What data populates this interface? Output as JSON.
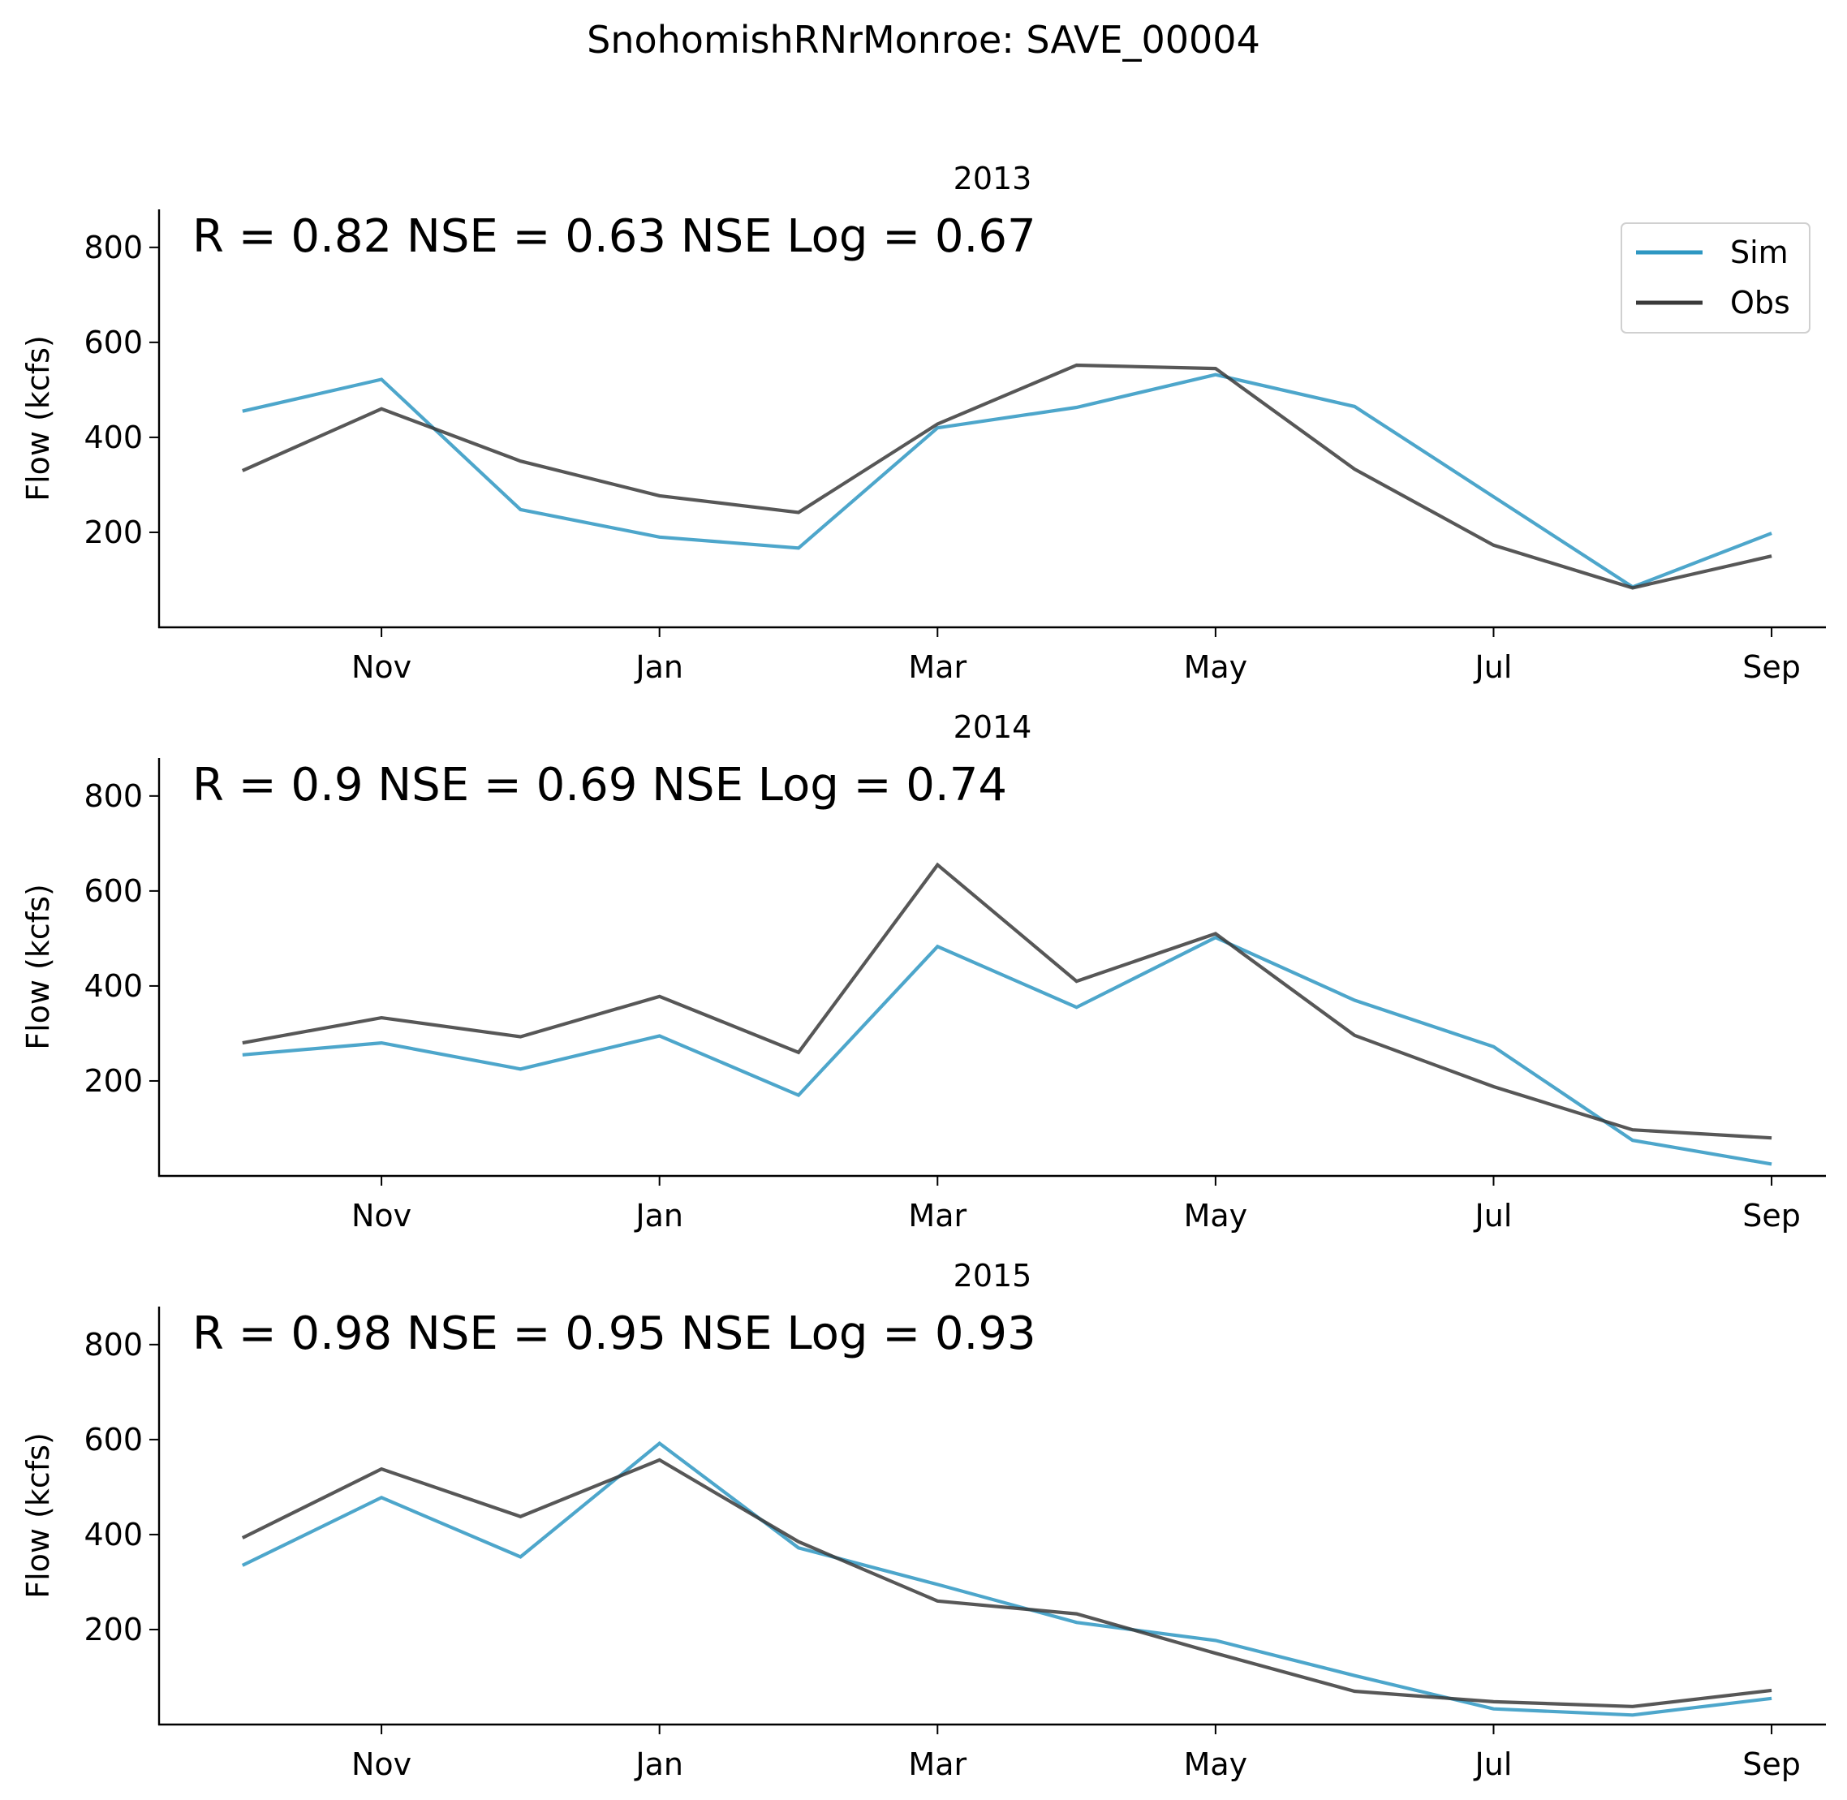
{
  "figure": {
    "suptitle": "SnohomishRNrMonroe: SAVE_00004"
  },
  "legend": {
    "placement": "upper-right of first panel",
    "items": [
      {
        "label": "Sim",
        "color": "#2e97c2"
      },
      {
        "label": "Obs",
        "color": "#3a3a3a"
      }
    ]
  },
  "chart_data": [
    {
      "type": "line",
      "title": "2013",
      "annotation": "R = 0.82  NSE = 0.63  NSE Log = 0.67",
      "ylabel": "Flow (kcfs)",
      "xlabel": "",
      "ylim": [
        0,
        880
      ],
      "yticks": [
        200,
        400,
        600,
        800
      ],
      "xticks": [
        "Nov",
        "Jan",
        "Mar",
        "May",
        "Jul",
        "Sep"
      ],
      "x": [
        "Oct",
        "Nov",
        "Dec",
        "Jan",
        "Feb",
        "Mar",
        "Apr",
        "May",
        "Jun",
        "Jul",
        "Aug",
        "Sep"
      ],
      "grid": false,
      "series": [
        {
          "name": "Sim",
          "color": "#2e97c2",
          "values": [
            455,
            522,
            248,
            190,
            167,
            420,
            463,
            532,
            465,
            275,
            85,
            198
          ]
        },
        {
          "name": "Obs",
          "color": "#3a3a3a",
          "values": [
            330,
            460,
            350,
            277,
            242,
            428,
            552,
            545,
            333,
            173,
            83,
            150
          ]
        }
      ]
    },
    {
      "type": "line",
      "title": "2014",
      "annotation": "R = 0.9  NSE = 0.69  NSE Log = 0.74",
      "ylabel": "Flow (kcfs)",
      "xlabel": "",
      "ylim": [
        0,
        880
      ],
      "yticks": [
        200,
        400,
        600,
        800
      ],
      "xticks": [
        "Nov",
        "Jan",
        "Mar",
        "May",
        "Jul",
        "Sep"
      ],
      "x": [
        "Oct",
        "Nov",
        "Dec",
        "Jan",
        "Feb",
        "Mar",
        "Apr",
        "May",
        "Jun",
        "Jul",
        "Aug",
        "Sep"
      ],
      "grid": false,
      "series": [
        {
          "name": "Sim",
          "color": "#2e97c2",
          "values": [
            255,
            280,
            225,
            295,
            170,
            483,
            355,
            502,
            370,
            272,
            75,
            25
          ]
        },
        {
          "name": "Obs",
          "color": "#3a3a3a",
          "values": [
            280,
            333,
            293,
            378,
            260,
            655,
            410,
            510,
            296,
            188,
            97,
            80
          ]
        }
      ]
    },
    {
      "type": "line",
      "title": "2015",
      "annotation": "R = 0.98  NSE = 0.95  NSE Log = 0.93",
      "ylabel": "Flow (kcfs)",
      "xlabel": "",
      "ylim": [
        0,
        880
      ],
      "yticks": [
        200,
        400,
        600,
        800
      ],
      "xticks": [
        "Nov",
        "Jan",
        "Mar",
        "May",
        "Jul",
        "Sep"
      ],
      "x": [
        "Oct",
        "Nov",
        "Dec",
        "Jan",
        "Feb",
        "Mar",
        "Apr",
        "May",
        "Jun",
        "Jul",
        "Aug",
        "Sep"
      ],
      "grid": false,
      "series": [
        {
          "name": "Sim",
          "color": "#2e97c2",
          "values": [
            335,
            478,
            353,
            592,
            372,
            295,
            215,
            177,
            103,
            33,
            20,
            55
          ]
        },
        {
          "name": "Obs",
          "color": "#3a3a3a",
          "values": [
            393,
            538,
            438,
            557,
            385,
            260,
            233,
            150,
            70,
            48,
            38,
            72
          ]
        }
      ]
    }
  ]
}
